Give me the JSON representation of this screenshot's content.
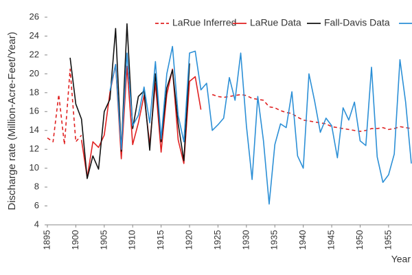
{
  "chart_data": {
    "type": "line",
    "x_label": "Year",
    "y_label": "Discharge rate (Million-Acre-Feet/Year)",
    "x": [
      1895,
      1896,
      1897,
      1898,
      1899,
      1900,
      1901,
      1902,
      1903,
      1904,
      1905,
      1906,
      1907,
      1908,
      1909,
      1910,
      1911,
      1912,
      1913,
      1914,
      1915,
      1916,
      1917,
      1918,
      1919,
      1920,
      1921,
      1922,
      1923,
      1924,
      1925,
      1926,
      1927,
      1928,
      1929,
      1930,
      1931,
      1932,
      1933,
      1934,
      1935,
      1936,
      1937,
      1938,
      1939,
      1940,
      1941,
      1942,
      1943,
      1944,
      1945,
      1946,
      1947,
      1948,
      1949,
      1950,
      1951,
      1952,
      1953,
      1954,
      1955,
      1956,
      1957,
      1958,
      1959
    ],
    "series": [
      {
        "name": "LaRue Inferred",
        "color": "#e02020",
        "style": "dashed",
        "values": [
          13.2,
          12.8,
          17.8,
          12.5,
          20.5,
          12.8,
          13.5,
          null,
          null,
          null,
          null,
          null,
          null,
          null,
          null,
          null,
          null,
          null,
          null,
          null,
          null,
          null,
          null,
          null,
          null,
          null,
          null,
          null,
          null,
          17.8,
          17.6,
          17.5,
          17.6,
          17.7,
          17.8,
          17.7,
          17.4,
          17.3,
          17.2,
          16.5,
          16.4,
          16.1,
          15.9,
          15.8,
          15.4,
          15.1,
          15.0,
          14.9,
          14.8,
          14.7,
          14.4,
          14.3,
          14.2,
          14.1,
          14.0,
          13.9,
          14.0,
          14.2,
          14.2,
          14.3,
          14.1,
          14.2,
          14.4,
          14.3,
          14.2
        ]
      },
      {
        "name": "LaRue Data",
        "color": "#e02020",
        "style": "solid",
        "values": [
          null,
          null,
          null,
          null,
          null,
          null,
          13.0,
          9.0,
          12.8,
          12.2,
          13.5,
          18.0,
          21.0,
          11.0,
          20.8,
          12.5,
          14.8,
          17.7,
          12.5,
          19.0,
          11.7,
          17.8,
          20.5,
          13.0,
          10.5,
          19.2,
          19.7,
          16.2,
          null,
          null,
          null,
          null,
          null,
          null,
          null,
          null,
          null,
          null,
          null,
          null,
          null,
          null,
          null,
          null,
          null,
          null,
          null,
          null,
          null,
          null,
          null,
          null,
          null,
          null,
          null,
          null,
          null,
          null,
          null,
          null,
          null,
          null,
          null,
          null,
          null
        ]
      },
      {
        "name": "Fall-Davis Data",
        "color": "#111111",
        "style": "solid",
        "values": [
          null,
          null,
          null,
          null,
          21.7,
          16.8,
          15.2,
          8.9,
          11.3,
          9.9,
          16.0,
          17.3,
          24.8,
          11.8,
          25.3,
          14.2,
          17.6,
          18.2,
          11.9,
          20.0,
          12.8,
          18.5,
          20.4,
          14.7,
          10.8,
          21.1,
          null,
          null,
          null,
          null,
          null,
          null,
          null,
          null,
          null,
          null,
          null,
          null,
          null,
          null,
          null,
          null,
          null,
          null,
          null,
          null,
          null,
          null,
          null,
          null,
          null,
          null,
          null,
          null,
          null,
          null,
          null,
          null,
          null,
          null,
          null,
          null,
          null,
          null,
          null
        ]
      },
      {
        "color": "#2b8fd6",
        "style": "solid",
        "values": [
          null,
          null,
          null,
          null,
          null,
          null,
          null,
          null,
          null,
          null,
          null,
          18.2,
          21.0,
          12.0,
          22.2,
          14.5,
          15.6,
          18.6,
          14.8,
          21.3,
          13.1,
          20.0,
          22.9,
          15.6,
          12.8,
          22.2,
          22.4,
          18.3,
          19.0,
          14.0,
          14.6,
          15.3,
          19.6,
          17.2,
          22.2,
          14.5,
          8.8,
          17.6,
          12.9,
          6.2,
          12.5,
          14.7,
          14.3,
          18.1,
          11.3,
          10.0,
          20.0,
          17.1,
          13.8,
          15.3,
          14.5,
          11.1,
          16.4,
          15.1,
          17.0,
          12.9,
          12.4,
          20.7,
          11.2,
          8.5,
          9.3,
          11.5,
          21.5,
          17.0,
          10.5
        ]
      }
    ],
    "xlim": [
      1895,
      1959
    ],
    "xticks": [
      1895,
      1900,
      1905,
      1910,
      1915,
      1920,
      1925,
      1930,
      1935,
      1940,
      1945,
      1950,
      1955
    ],
    "ylim": [
      4,
      26
    ],
    "yticks": [
      4,
      6,
      8,
      10,
      12,
      14,
      16,
      18,
      20,
      22,
      24,
      26
    ]
  }
}
